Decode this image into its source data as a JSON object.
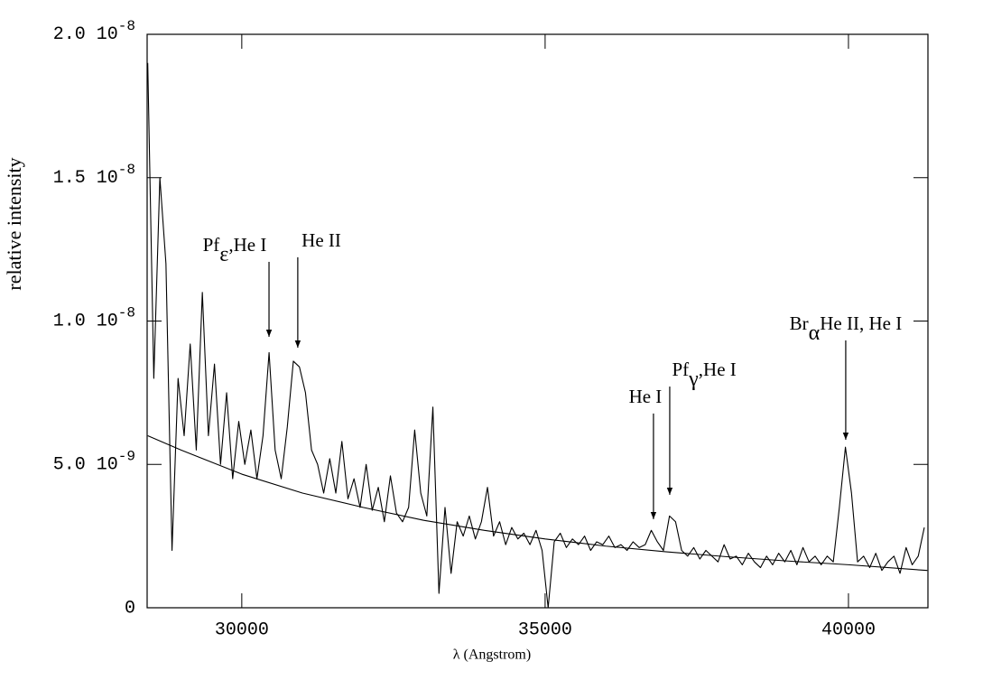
{
  "chart_data": {
    "type": "line",
    "xlabel": "λ   (Angstrom)",
    "ylabel": "relative intensity",
    "xlim": [
      28440,
      41310
    ],
    "ylim": [
      0,
      2e-08
    ],
    "xticks": [
      30000,
      35000,
      40000
    ],
    "yticks": [
      0,
      {
        "value": 5e-09,
        "label": "5.0 10",
        "exponent": "-9"
      },
      {
        "value": 1e-08,
        "label": "1.0 10",
        "exponent": "-8"
      },
      {
        "value": 1.5e-08,
        "label": "1.5 10",
        "exponent": "-8"
      },
      {
        "value": 2e-08,
        "label": "2.0 10",
        "exponent": "-8"
      }
    ],
    "series": [
      {
        "color": "#000000",
        "x": [
          28450,
          28550,
          28650,
          28750,
          28850,
          28950,
          29050,
          29150,
          29250,
          29350,
          29450,
          29550,
          29650,
          29750,
          29850,
          29950,
          30050,
          30150,
          30250,
          30350,
          30450,
          30550,
          30650,
          30750,
          30850,
          30950,
          31050,
          31150,
          31250,
          31350,
          31450,
          31550,
          31650,
          31750,
          31850,
          31950,
          32050,
          32150,
          32250,
          32350,
          32450,
          32550,
          32650,
          32750,
          32850,
          32950,
          33050,
          33150,
          33250,
          33350,
          33450,
          33550,
          33650,
          33750,
          33850,
          33950,
          34050,
          34150,
          34250,
          34350,
          34450,
          34550,
          34650,
          34750,
          34850,
          34950,
          35050,
          35150,
          35250,
          35350,
          35450,
          35550,
          35650,
          35750,
          35850,
          35950,
          36050,
          36150,
          36250,
          36350,
          36450,
          36550,
          36650,
          36750,
          36850,
          36950,
          37050,
          37150,
          37250,
          37350,
          37450,
          37550,
          37650,
          37750,
          37850,
          37950,
          38050,
          38150,
          38250,
          38350,
          38450,
          38550,
          38650,
          38750,
          38850,
          38950,
          39050,
          39150,
          39250,
          39350,
          39450,
          39550,
          39650,
          39750,
          39850,
          39950,
          40050,
          40150,
          40250,
          40350,
          40450,
          40550,
          40650,
          40750,
          40850,
          40950,
          41050,
          41150,
          41250
        ],
        "values": [
          1.9e-08,
          8e-09,
          1.5e-08,
          1.2e-08,
          2e-09,
          8e-09,
          6e-09,
          9.2e-09,
          5.5e-09,
          1.1e-08,
          6e-09,
          8.5e-09,
          5e-09,
          7.5e-09,
          4.5e-09,
          6.5e-09,
          5e-09,
          6.2e-09,
          4.5e-09,
          6e-09,
          8.9e-09,
          5.5e-09,
          4.5e-09,
          6.3e-09,
          8.6e-09,
          8.4e-09,
          7.5e-09,
          5.5e-09,
          5e-09,
          4e-09,
          5.2e-09,
          4e-09,
          5.8e-09,
          3.8e-09,
          4.5e-09,
          3.5e-09,
          5e-09,
          3.4e-09,
          4.2e-09,
          3e-09,
          4.6e-09,
          3.3e-09,
          3e-09,
          3.5e-09,
          6.2e-09,
          4e-09,
          3.2e-09,
          7e-09,
          5e-10,
          3.5e-09,
          1.2e-09,
          3e-09,
          2.5e-09,
          3.2e-09,
          2.4e-09,
          3e-09,
          4.2e-09,
          2.5e-09,
          3e-09,
          2.2e-09,
          2.8e-09,
          2.4e-09,
          2.6e-09,
          2.2e-09,
          2.7e-09,
          2e-09,
          0,
          2.3e-09,
          2.6e-09,
          2.1e-09,
          2.4e-09,
          2.2e-09,
          2.5e-09,
          2e-09,
          2.3e-09,
          2.2e-09,
          2.5e-09,
          2.1e-09,
          2.2e-09,
          2e-09,
          2.3e-09,
          2.1e-09,
          2.2e-09,
          2.7e-09,
          2.3e-09,
          2e-09,
          3.2e-09,
          3e-09,
          2e-09,
          1.8e-09,
          2.1e-09,
          1.7e-09,
          2e-09,
          1.8e-09,
          1.6e-09,
          2.2e-09,
          1.7e-09,
          1.8e-09,
          1.5e-09,
          1.9e-09,
          1.6e-09,
          1.4e-09,
          1.8e-09,
          1.5e-09,
          1.9e-09,
          1.6e-09,
          2e-09,
          1.5e-09,
          2.1e-09,
          1.6e-09,
          1.8e-09,
          1.5e-09,
          1.8e-09,
          1.6e-09,
          3.5e-09,
          5.6e-09,
          4e-09,
          1.6e-09,
          1.8e-09,
          1.4e-09,
          1.9e-09,
          1.3e-09,
          1.6e-09,
          1.8e-09,
          1.2e-09,
          2.1e-09,
          1.5e-09,
          1.8e-09,
          2.8e-09
        ]
      },
      {
        "color": "#000000",
        "x": [
          28450,
          29000,
          30000,
          31000,
          32000,
          33000,
          34000,
          35000,
          36000,
          37000,
          38000,
          39000,
          40000,
          41300
        ],
        "values": [
          6e-09,
          5.5e-09,
          4.66e-09,
          4e-09,
          3.5e-09,
          3.05e-09,
          2.7e-09,
          2.4e-09,
          2.15e-09,
          1.95e-09,
          1.78e-09,
          1.63e-09,
          1.5e-09,
          1.3e-09
        ]
      }
    ],
    "annotations": [
      {
        "text": "Pf",
        "sub": "ε",
        "after": ",He I",
        "xy": [
          30449,
          9.45e-09
        ],
        "xytext": [
          29883,
          1.26e-08
        ]
      },
      {
        "text": "He II",
        "xy": [
          30923,
          9.07e-09
        ],
        "xytext": [
          31312,
          1.276e-08
        ]
      },
      {
        "text": "He I",
        "xy": [
          36786,
          3.09e-09
        ],
        "xytext": [
          36652,
          7.31e-09
        ]
      },
      {
        "text": "Pf",
        "sub": "γ",
        "after": ",He I",
        "xy": [
          37054,
          3.94e-09
        ],
        "xytext": [
          37622,
          8.25e-09
        ]
      },
      {
        "text": "Br",
        "sub": "α",
        "after": "He II, He I",
        "xy": [
          39955,
          5.86e-09
        ],
        "xytext": [
          39955,
          9.86e-09
        ]
      }
    ]
  }
}
